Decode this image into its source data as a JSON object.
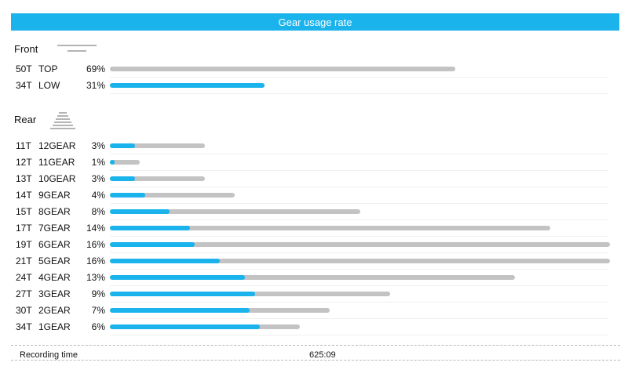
{
  "header": {
    "title": "Gear usage rate"
  },
  "colors": {
    "accent": "#1ab3ec",
    "track": "#c3c3c3"
  },
  "front": {
    "label": "Front",
    "rows": [
      {
        "teeth": "50T",
        "gear": "TOP",
        "pct": "69%",
        "fill": 0,
        "total": 0.69
      },
      {
        "teeth": "34T",
        "gear": "LOW",
        "pct": "31%",
        "fill": 0.31,
        "total": 0.31
      }
    ]
  },
  "rear": {
    "label": "Rear",
    "rows": [
      {
        "teeth": "11T",
        "gear": "12GEAR",
        "pct": "3%",
        "fill": 0.05,
        "total": 0.19
      },
      {
        "teeth": "12T",
        "gear": "11GEAR",
        "pct": "1%",
        "fill": 0.01,
        "total": 0.06
      },
      {
        "teeth": "13T",
        "gear": "10GEAR",
        "pct": "3%",
        "fill": 0.05,
        "total": 0.19
      },
      {
        "teeth": "14T",
        "gear": "9GEAR",
        "pct": "4%",
        "fill": 0.07,
        "total": 0.25
      },
      {
        "teeth": "15T",
        "gear": "8GEAR",
        "pct": "8%",
        "fill": 0.12,
        "total": 0.5
      },
      {
        "teeth": "17T",
        "gear": "7GEAR",
        "pct": "14%",
        "fill": 0.16,
        "total": 0.88
      },
      {
        "teeth": "19T",
        "gear": "6GEAR",
        "pct": "16%",
        "fill": 0.17,
        "total": 1.0
      },
      {
        "teeth": "21T",
        "gear": "5GEAR",
        "pct": "16%",
        "fill": 0.22,
        "total": 1.0
      },
      {
        "teeth": "24T",
        "gear": "4GEAR",
        "pct": "13%",
        "fill": 0.27,
        "total": 0.81
      },
      {
        "teeth": "27T",
        "gear": "3GEAR",
        "pct": "9%",
        "fill": 0.29,
        "total": 0.56
      },
      {
        "teeth": "30T",
        "gear": "2GEAR",
        "pct": "7%",
        "fill": 0.28,
        "total": 0.44
      },
      {
        "teeth": "34T",
        "gear": "1GEAR",
        "pct": "6%",
        "fill": 0.3,
        "total": 0.38
      }
    ]
  },
  "footer": {
    "label": "Recording time",
    "value": "625:09"
  }
}
